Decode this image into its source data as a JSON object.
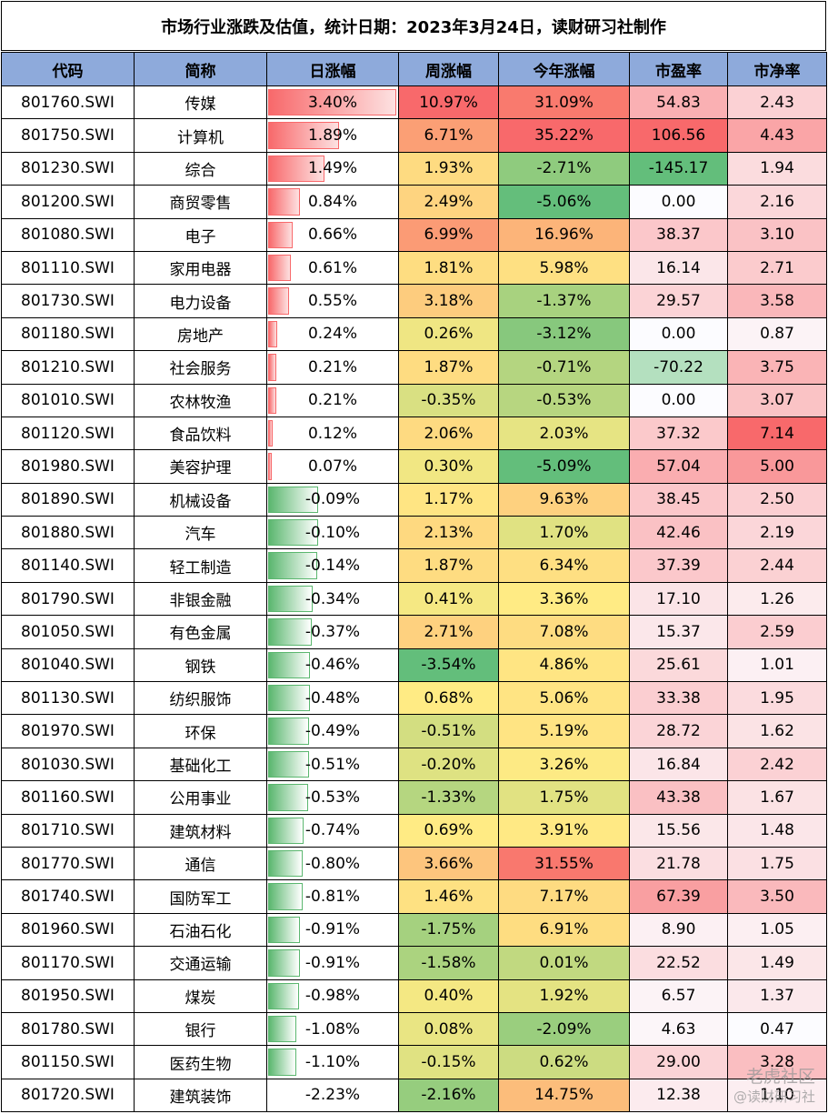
{
  "title": "市场行业涨跌及估值，统计日期：2023年3月24日，读财研习社制作",
  "columns": [
    "代码",
    "简称",
    "日涨幅",
    "周涨幅",
    "今年涨幅",
    "市盈率",
    "市净率"
  ],
  "rows": [
    {
      "code": "801760.SWI",
      "name": "传媒",
      "day": "3.40%",
      "week": "10.97%",
      "ytd": "31.09%",
      "pe": "54.83",
      "pb": "2.43"
    },
    {
      "code": "801750.SWI",
      "name": "计算机",
      "day": "1.89%",
      "week": "6.71%",
      "ytd": "35.22%",
      "pe": "106.56",
      "pb": "4.43"
    },
    {
      "code": "801230.SWI",
      "name": "综合",
      "day": "1.49%",
      "week": "1.93%",
      "ytd": "-2.71%",
      "pe": "-145.17",
      "pb": "1.94"
    },
    {
      "code": "801200.SWI",
      "name": "商贸零售",
      "day": "0.84%",
      "week": "2.49%",
      "ytd": "-5.06%",
      "pe": "0.00",
      "pb": "2.16"
    },
    {
      "code": "801080.SWI",
      "name": "电子",
      "day": "0.66%",
      "week": "6.99%",
      "ytd": "16.96%",
      "pe": "38.37",
      "pb": "3.10"
    },
    {
      "code": "801110.SWI",
      "name": "家用电器",
      "day": "0.61%",
      "week": "1.81%",
      "ytd": "5.98%",
      "pe": "16.14",
      "pb": "2.71"
    },
    {
      "code": "801730.SWI",
      "name": "电力设备",
      "day": "0.55%",
      "week": "3.18%",
      "ytd": "-1.37%",
      "pe": "29.57",
      "pb": "3.58"
    },
    {
      "code": "801180.SWI",
      "name": "房地产",
      "day": "0.24%",
      "week": "0.26%",
      "ytd": "-3.12%",
      "pe": "0.00",
      "pb": "0.87"
    },
    {
      "code": "801210.SWI",
      "name": "社会服务",
      "day": "0.21%",
      "week": "1.87%",
      "ytd": "-0.71%",
      "pe": "-70.22",
      "pb": "3.75"
    },
    {
      "code": "801010.SWI",
      "name": "农林牧渔",
      "day": "0.21%",
      "week": "-0.35%",
      "ytd": "-0.53%",
      "pe": "0.00",
      "pb": "3.07"
    },
    {
      "code": "801120.SWI",
      "name": "食品饮料",
      "day": "0.12%",
      "week": "2.06%",
      "ytd": "2.03%",
      "pe": "37.32",
      "pb": "7.14"
    },
    {
      "code": "801980.SWI",
      "name": "美容护理",
      "day": "0.07%",
      "week": "0.30%",
      "ytd": "-5.09%",
      "pe": "57.04",
      "pb": "5.00"
    },
    {
      "code": "801890.SWI",
      "name": "机械设备",
      "day": "-0.09%",
      "week": "1.17%",
      "ytd": "9.63%",
      "pe": "38.45",
      "pb": "2.50"
    },
    {
      "code": "801880.SWI",
      "name": "汽车",
      "day": "-0.10%",
      "week": "2.13%",
      "ytd": "1.70%",
      "pe": "42.46",
      "pb": "2.19"
    },
    {
      "code": "801140.SWI",
      "name": "轻工制造",
      "day": "-0.14%",
      "week": "1.87%",
      "ytd": "6.34%",
      "pe": "37.39",
      "pb": "2.44"
    },
    {
      "code": "801790.SWI",
      "name": "非银金融",
      "day": "-0.34%",
      "week": "0.41%",
      "ytd": "3.36%",
      "pe": "17.10",
      "pb": "1.26"
    },
    {
      "code": "801050.SWI",
      "name": "有色金属",
      "day": "-0.37%",
      "week": "2.71%",
      "ytd": "7.08%",
      "pe": "15.37",
      "pb": "2.59"
    },
    {
      "code": "801040.SWI",
      "name": "钢铁",
      "day": "-0.46%",
      "week": "-3.54%",
      "ytd": "4.86%",
      "pe": "25.61",
      "pb": "1.01"
    },
    {
      "code": "801130.SWI",
      "name": "纺织服饰",
      "day": "-0.48%",
      "week": "0.68%",
      "ytd": "5.06%",
      "pe": "33.38",
      "pb": "1.95"
    },
    {
      "code": "801970.SWI",
      "name": "环保",
      "day": "-0.49%",
      "week": "-0.51%",
      "ytd": "5.19%",
      "pe": "28.72",
      "pb": "1.62"
    },
    {
      "code": "801030.SWI",
      "name": "基础化工",
      "day": "-0.51%",
      "week": "-0.20%",
      "ytd": "3.26%",
      "pe": "16.84",
      "pb": "2.42"
    },
    {
      "code": "801160.SWI",
      "name": "公用事业",
      "day": "-0.53%",
      "week": "-1.33%",
      "ytd": "1.75%",
      "pe": "43.38",
      "pb": "1.67"
    },
    {
      "code": "801710.SWI",
      "name": "建筑材料",
      "day": "-0.74%",
      "week": "0.69%",
      "ytd": "3.91%",
      "pe": "15.56",
      "pb": "1.48"
    },
    {
      "code": "801770.SWI",
      "name": "通信",
      "day": "-0.80%",
      "week": "3.66%",
      "ytd": "31.55%",
      "pe": "21.78",
      "pb": "1.75"
    },
    {
      "code": "801740.SWI",
      "name": "国防军工",
      "day": "-0.81%",
      "week": "1.46%",
      "ytd": "7.17%",
      "pe": "67.39",
      "pb": "3.50"
    },
    {
      "code": "801960.SWI",
      "name": "石油石化",
      "day": "-0.91%",
      "week": "-1.75%",
      "ytd": "6.91%",
      "pe": "8.90",
      "pb": "1.05"
    },
    {
      "code": "801170.SWI",
      "name": "交通运输",
      "day": "-0.91%",
      "week": "-1.58%",
      "ytd": "0.01%",
      "pe": "22.52",
      "pb": "1.49"
    },
    {
      "code": "801950.SWI",
      "name": "煤炭",
      "day": "-0.98%",
      "week": "0.40%",
      "ytd": "1.92%",
      "pe": "6.57",
      "pb": "1.37"
    },
    {
      "code": "801780.SWI",
      "name": "银行",
      "day": "-1.08%",
      "week": "0.08%",
      "ytd": "-2.09%",
      "pe": "4.63",
      "pb": "0.47"
    },
    {
      "code": "801150.SWI",
      "name": "医药生物",
      "day": "-1.10%",
      "week": "-0.15%",
      "ytd": "0.62%",
      "pe": "29.00",
      "pb": "3.28"
    },
    {
      "code": "801720.SWI",
      "name": "建筑装饰",
      "day": "-2.23%",
      "week": "-2.16%",
      "ytd": "14.75%",
      "pe": "12.38",
      "pb": "1.10"
    }
  ],
  "colors": {
    "header_bg": "#8eaadb",
    "scale_low": "#63be7b",
    "scale_mid": "#ffeb84",
    "scale_high": "#f8696b",
    "pink_high": "#f8696b",
    "pink_low": "#fcfcff",
    "pe_negative": "#63be7b"
  },
  "watermark": {
    "line1": "老虎社区",
    "line2": "@读财研习社"
  }
}
